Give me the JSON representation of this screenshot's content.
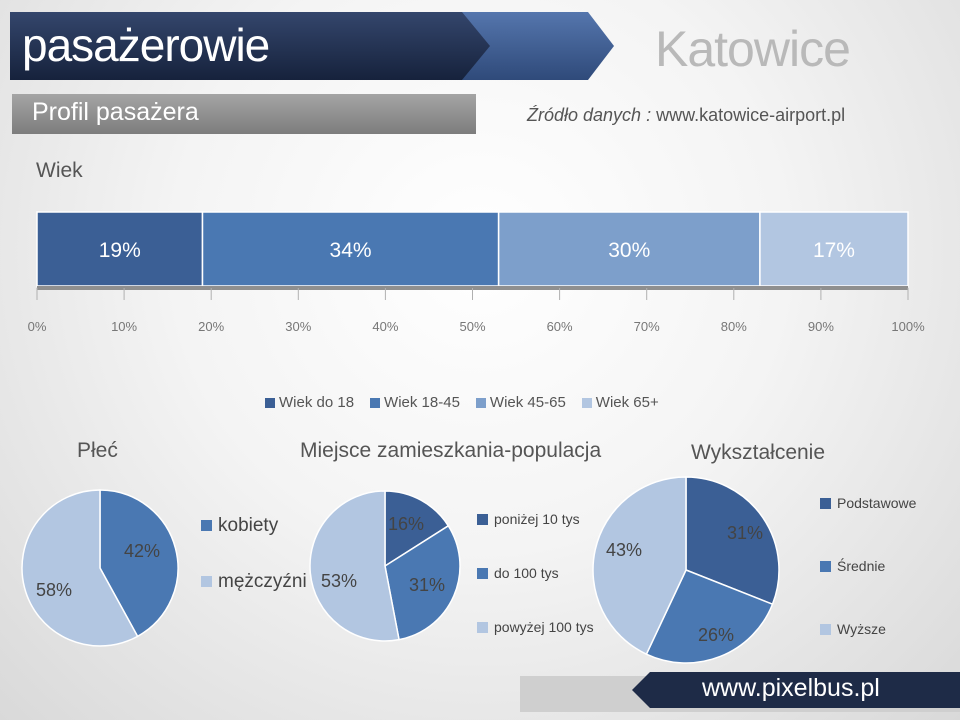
{
  "header": {
    "title": "pasażerowie",
    "city": "Katowice",
    "subtitle": "Profil pasażera",
    "source_label": "Źródło danych :",
    "source_url": "www.katowice-airport.pl"
  },
  "colors": {
    "series": [
      "#3b5f95",
      "#4a78b2",
      "#7d9fcb",
      "#b2c6e1"
    ],
    "header_dark": "#1f2d4b",
    "header_mid": "#3e5a8c"
  },
  "chart_data": [
    {
      "type": "bar",
      "stacked": true,
      "orientation": "horizontal",
      "title": "Wiek",
      "series": [
        {
          "name": "Wiek do 18",
          "values": [
            19
          ],
          "label": "19%"
        },
        {
          "name": "Wiek 18-45",
          "values": [
            34
          ],
          "label": "34%"
        },
        {
          "name": "Wiek 45-65",
          "values": [
            30
          ],
          "label": "30%"
        },
        {
          "name": "Wiek 65+",
          "values": [
            17
          ],
          "label": "17%"
        }
      ],
      "xlim": [
        0,
        100
      ],
      "ticks": [
        "0%",
        "10%",
        "20%",
        "30%",
        "40%",
        "50%",
        "60%",
        "70%",
        "80%",
        "90%",
        "100%"
      ],
      "legend_position": "bottom"
    },
    {
      "type": "pie",
      "title": "Płeć",
      "slices": [
        {
          "name": "kobiety",
          "value": 42,
          "label": "42%"
        },
        {
          "name": "mężczyźni",
          "value": 58,
          "label": "58%"
        }
      ]
    },
    {
      "type": "pie",
      "title": "Miejsce zamieszkania-populacja",
      "slices": [
        {
          "name": "poniżej 10 tys",
          "value": 16,
          "label": "16%"
        },
        {
          "name": "do 100 tys",
          "value": 31,
          "label": "31%"
        },
        {
          "name": "powyżej 100 tys",
          "value": 53,
          "label": "53%"
        }
      ]
    },
    {
      "type": "pie",
      "title": "Wykształcenie",
      "slices": [
        {
          "name": "Podstawowe",
          "value": 31,
          "label": "31%"
        },
        {
          "name": "Średnie",
          "value": 26,
          "label": "26%"
        },
        {
          "name": "Wyższe",
          "value": 43,
          "label": "43%"
        }
      ]
    }
  ],
  "footer": {
    "url": "www.pixelbus.pl"
  }
}
